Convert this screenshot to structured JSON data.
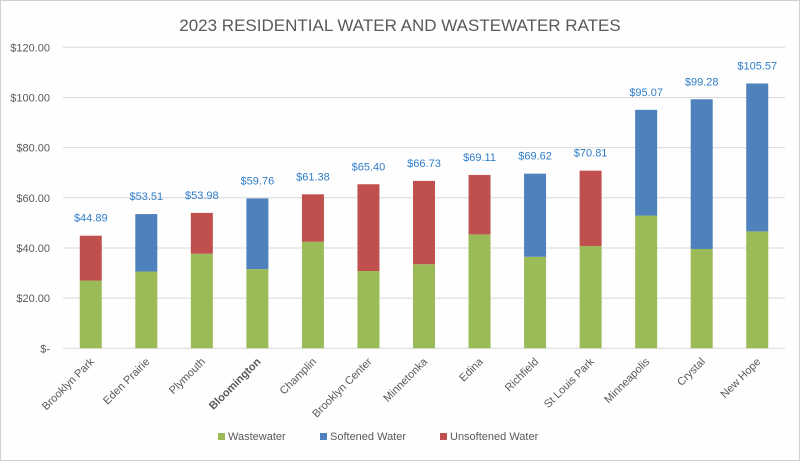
{
  "chart_data": {
    "type": "bar",
    "stacked": true,
    "title": "2023 RESIDENTIAL WATER AND WASTEWATER RATES",
    "categories": [
      "Brooklyn Park",
      "Eden Prairie",
      "Plymouth",
      "Bloomington",
      "Champlin",
      "Brooklyn Center",
      "Minnetonka",
      "Edina",
      "Richfield",
      "St Louis Park",
      "Minneapolis",
      "Crystal",
      "New Hope"
    ],
    "highlight_category": "Bloomington",
    "highlight_color": "#ff0000",
    "series": [
      {
        "name": "Wastewater",
        "color": "#9bbb59",
        "values": [
          27.0,
          30.6,
          37.7,
          31.6,
          42.5,
          30.8,
          33.5,
          45.4,
          36.5,
          40.8,
          52.9,
          39.6,
          46.6
        ]
      },
      {
        "name": "Softened Water",
        "color": "#4f81bd",
        "values": [
          null,
          22.91,
          null,
          28.16,
          null,
          null,
          null,
          null,
          33.12,
          null,
          42.17,
          59.68,
          58.97
        ]
      },
      {
        "name": "Unsoftened Water",
        "color": "#c0504d",
        "values": [
          17.89,
          null,
          16.28,
          null,
          18.88,
          34.6,
          33.23,
          23.71,
          null,
          30.01,
          null,
          null,
          null
        ]
      }
    ],
    "totals": [
      44.89,
      53.51,
      53.98,
      59.76,
      61.38,
      65.4,
      66.73,
      69.11,
      69.62,
      70.81,
      95.07,
      99.28,
      105.57
    ],
    "total_labels": [
      "$44.89",
      "$53.51",
      "$53.98",
      "$59.76",
      "$61.38",
      "$65.40",
      "$66.73",
      "$69.11",
      "$69.62",
      "$70.81",
      "$95.07",
      "$99.28",
      "$105.57"
    ],
    "ylim": [
      0,
      120
    ],
    "yticks": [
      0,
      20,
      40,
      60,
      80,
      100,
      120
    ],
    "ytick_labels": [
      "$-",
      "$20.00",
      "$40.00",
      "$60.00",
      "$80.00",
      "$100.00",
      "$120.00"
    ],
    "grid": true,
    "legend_position": "bottom"
  }
}
